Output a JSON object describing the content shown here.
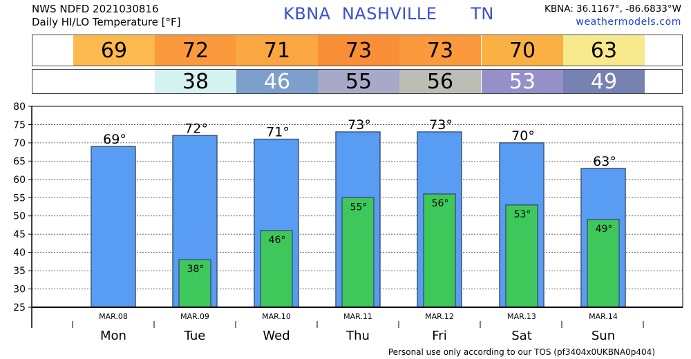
{
  "header": {
    "line1": "NWS NDFD 2021030816",
    "line2": "Daily HI/LO Temperature [°F]",
    "station_code": "KBNA",
    "station_name": "NASHVILLE",
    "state": "TN",
    "coords": "KBNA: 36.1167°, -86.6833°W",
    "site": "weathermodels.com"
  },
  "footer": "Personal use only according to our TOS (pf3404x0UKBNA0p404)",
  "colors": {
    "hi_bar": "#589cf3",
    "lo_bar": "#3ec85c",
    "hi_cells": [
      "#fbb94e",
      "#fa9a3c",
      "#fba741",
      "#fa8e36",
      "#fa9a3c",
      "#fbb044",
      "#f8ea8c"
    ],
    "lo_cells": [
      null,
      "#d3f2f0",
      "#7c9fcc",
      "#a8a8c8",
      "#bdbdb5",
      "#9590c8",
      "#7582b2"
    ],
    "lo_text": [
      "#000",
      "#000",
      "#ffffff",
      "#000",
      "#000",
      "#ffffff",
      "#ffffff"
    ]
  },
  "hi_row": [
    "69",
    "72",
    "71",
    "73",
    "73",
    "70",
    "63"
  ],
  "lo_row": [
    "",
    "38",
    "46",
    "55",
    "56",
    "53",
    "49"
  ],
  "chart_data": {
    "type": "bar",
    "categories": [
      "MAR.08",
      "MAR.09",
      "MAR.10",
      "MAR.11",
      "MAR.12",
      "MAR.13",
      "MAR.14"
    ],
    "day_labels": [
      "Mon",
      "Tue",
      "Wed",
      "Thu",
      "Fri",
      "Sat",
      "Sun"
    ],
    "series": [
      {
        "values": [
          69,
          72,
          71,
          73,
          73,
          70,
          63
        ],
        "labels": [
          "69°",
          "72°",
          "71°",
          "73°",
          "73°",
          "70°",
          "63°"
        ]
      },
      {
        "values": [
          null,
          38,
          46,
          55,
          56,
          53,
          49
        ],
        "labels": [
          "",
          "38°",
          "46°",
          "55°",
          "56°",
          "53°",
          "49°"
        ]
      }
    ],
    "ylim": [
      25,
      80
    ],
    "yticks": [
      "25",
      "30",
      "35",
      "40",
      "45",
      "50",
      "55",
      "60",
      "65",
      "70",
      "75",
      "80"
    ],
    "grid": true
  }
}
